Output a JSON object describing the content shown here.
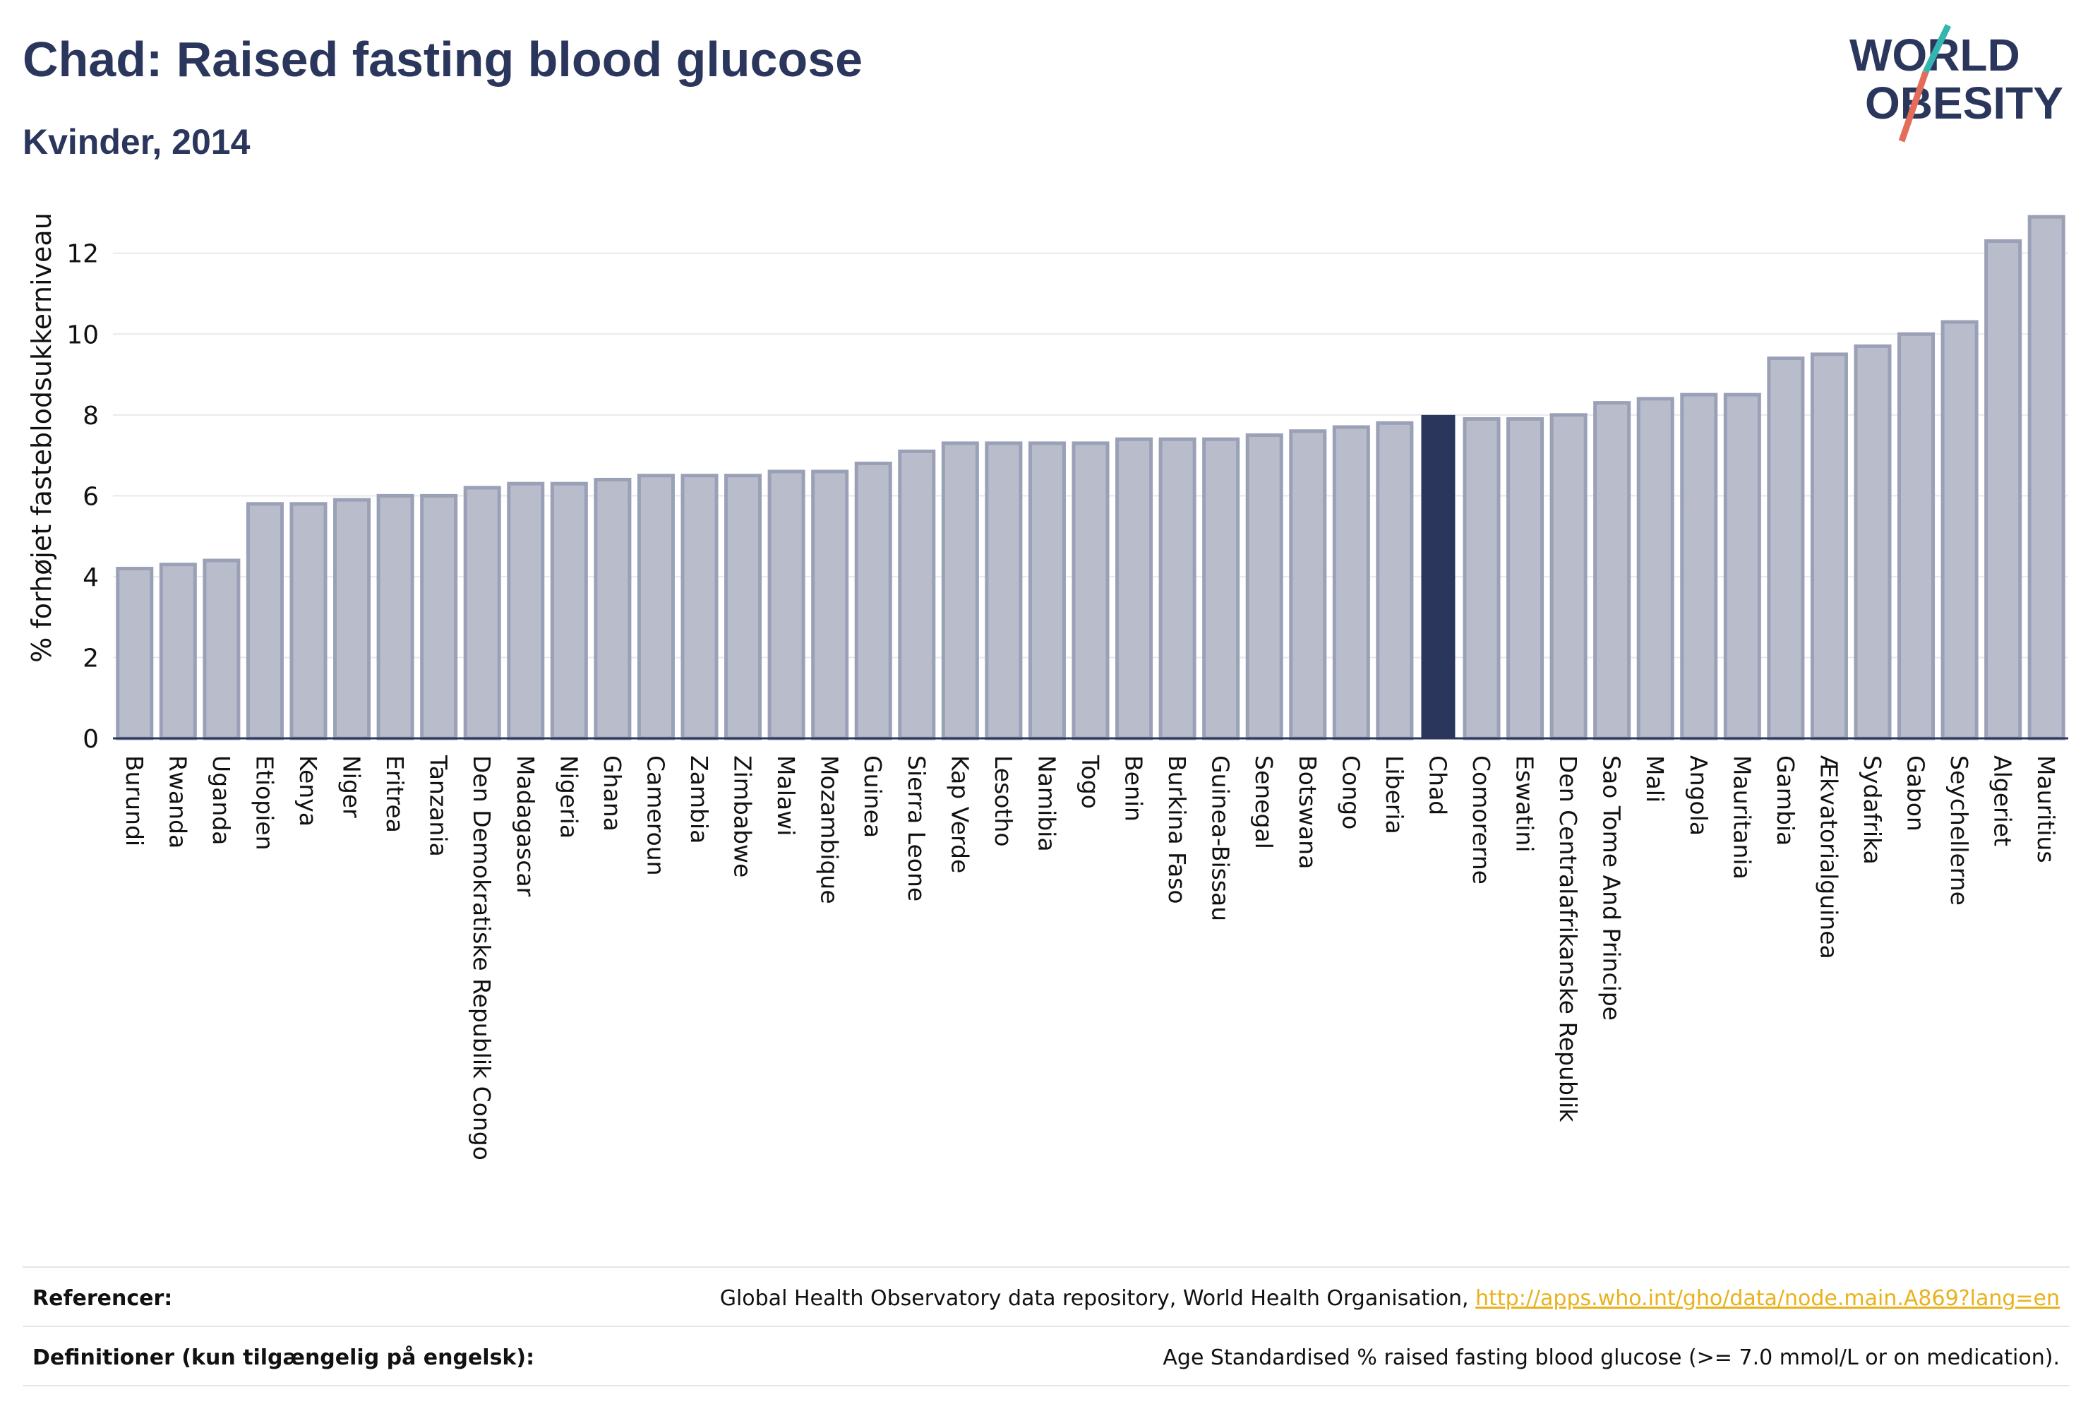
{
  "header": {
    "title": "Chad: Raised fasting blood glucose",
    "subtitle": "Kvinder, 2014"
  },
  "logo": {
    "line1": "WORLD",
    "line2": "OBESITY",
    "name": "world-obesity-logo"
  },
  "colors": {
    "bar": "#b9bdcb",
    "bar_stroke": "#9aa0b6",
    "highlight": "#2b365c",
    "grid": "#e8e8ee",
    "text": "#2b365c",
    "link": "#e8b21c"
  },
  "chart_data": {
    "type": "bar",
    "ylabel": "% forhøjet fasteblodsukkerniveau",
    "ylim": [
      0,
      13.2
    ],
    "yticks": [
      0,
      2,
      4,
      6,
      8,
      10,
      12
    ],
    "highlight": "Chad",
    "categories": [
      "Burundi",
      "Rwanda",
      "Uganda",
      "Etiopien",
      "Kenya",
      "Niger",
      "Eritrea",
      "Tanzania",
      "Den Demokratiske Republik Congo",
      "Madagascar",
      "Nigeria",
      "Ghana",
      "Cameroun",
      "Zambia",
      "Zimbabwe",
      "Malawi",
      "Mozambique",
      "Guinea",
      "Sierra Leone",
      "Kap Verde",
      "Lesotho",
      "Namibia",
      "Togo",
      "Benin",
      "Burkina Faso",
      "Guinea-Bissau",
      "Senegal",
      "Botswana",
      "Congo",
      "Liberia",
      "Chad",
      "Comorerne",
      "Eswatini",
      "Den Centralafrikanske Republik",
      "Sao Tome And Principe",
      "Mali",
      "Angola",
      "Mauritania",
      "Gambia",
      "Ækvatorialguinea",
      "Sydafrika",
      "Gabon",
      "Seychellerne",
      "Algeriet",
      "Mauritius"
    ],
    "values": [
      4.2,
      4.3,
      4.4,
      5.8,
      5.8,
      5.9,
      6.0,
      6.0,
      6.2,
      6.3,
      6.3,
      6.4,
      6.5,
      6.5,
      6.5,
      6.6,
      6.6,
      6.8,
      7.1,
      7.3,
      7.3,
      7.3,
      7.3,
      7.4,
      7.4,
      7.4,
      7.5,
      7.6,
      7.7,
      7.8,
      8.0,
      7.9,
      7.9,
      8.0,
      8.3,
      8.4,
      8.5,
      8.5,
      9.4,
      9.5,
      9.7,
      10.0,
      10.3,
      12.3,
      12.9
    ]
  },
  "references": {
    "ref_label": "Referencer:",
    "ref_text": "Global Health Observatory data repository, World Health Organisation,",
    "ref_link": "http://apps.who.int/gho/data/node.main.A869?lang=en",
    "def_label": "Definitioner (kun tilgængelig på engelsk):",
    "def_text": "Age Standardised % raised fasting blood glucose (>= 7.0 mmol/L or on medication)."
  }
}
